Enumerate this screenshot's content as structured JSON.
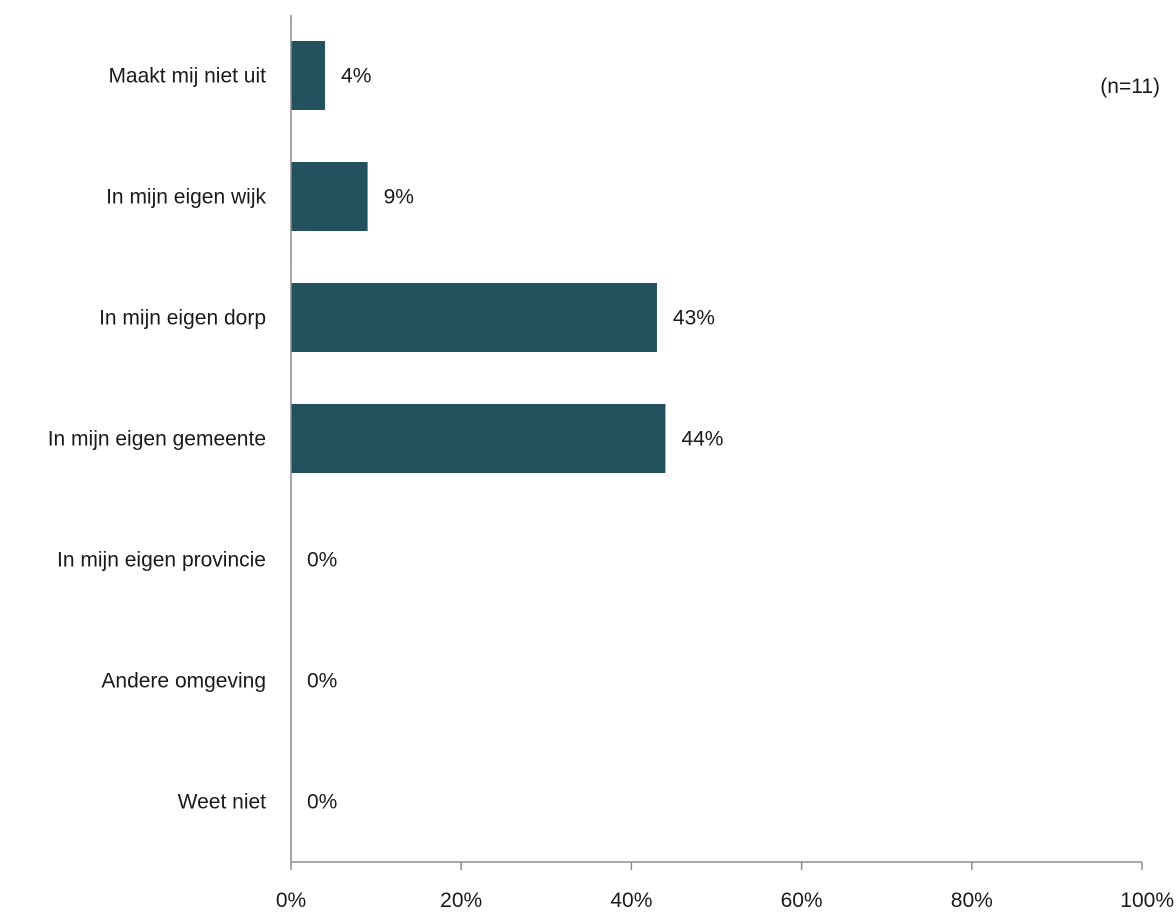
{
  "chart_data": {
    "type": "bar",
    "orientation": "horizontal",
    "categories": [
      "Maakt mij niet uit",
      "In mijn eigen wijk",
      "In mijn eigen dorp",
      "In mijn eigen gemeente",
      "In mijn eigen provincie",
      "Andere omgeving",
      "Weet niet"
    ],
    "values": [
      4,
      9,
      43,
      44,
      0,
      0,
      0
    ],
    "data_labels": [
      "4%",
      "9%",
      "43%",
      "44%",
      "0%",
      "0%",
      "0%"
    ],
    "xlim": [
      0,
      100
    ],
    "x_ticks": [
      0,
      20,
      40,
      60,
      80,
      100
    ],
    "x_tick_labels": [
      "0%",
      "20%",
      "40%",
      "60%",
      "80%",
      "100%"
    ],
    "annotation": "(n=11)",
    "bar_color": "#24515e",
    "axis_color": "#8c8c8c",
    "grid": false,
    "legend": "none"
  }
}
